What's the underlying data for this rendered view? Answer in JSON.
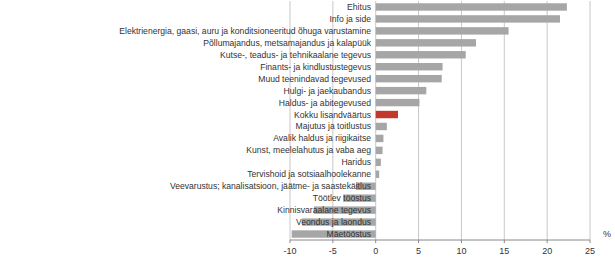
{
  "chart_data": {
    "type": "bar",
    "orientation": "horizontal",
    "xlabel": "%",
    "categories": [
      "Ehitus",
      "Info ja side",
      "Elektrienergia, gaasi, auru ja konditsioneeritud õhuga varustamine",
      "Põllumajandus, metsamajandus ja kalapüük",
      "Kutse-, teadus- ja tehnikaalane tegevus",
      "Finants- ja kindlustustegevus",
      "Muud teenindavad tegevused",
      "Hulgi- ja jaekaubandus",
      "Haldus- ja abitegevused",
      "Kokku lisandväärtus",
      "Majutus ja toitlustus",
      "Avalik haldus ja riigikaitse",
      "Kunst, meelelahutus ja vaba aeg",
      "Haridus",
      "Tervishoid ja sotsiaalhoolekanne",
      "Veevarustus; kanalisatsioon, jäätme- ja saastekäitlus",
      "Töötlev tööstus",
      "Kinnisvaraalane tegevus",
      "Veondus ja laondus",
      "Mäetööstus"
    ],
    "values": [
      22.3,
      21.5,
      15.5,
      11.7,
      10.5,
      7.8,
      7.7,
      5.9,
      5.1,
      2.6,
      1.3,
      0.9,
      0.8,
      0.6,
      0.4,
      -2.3,
      -3.8,
      -7.2,
      -8.6,
      -9.8
    ],
    "colors": [
      "#a6a6a6",
      "#a6a6a6",
      "#a6a6a6",
      "#a6a6a6",
      "#a6a6a6",
      "#a6a6a6",
      "#a6a6a6",
      "#a6a6a6",
      "#a6a6a6",
      "#c0392b",
      "#a6a6a6",
      "#a6a6a6",
      "#a6a6a6",
      "#a6a6a6",
      "#a6a6a6",
      "#a6a6a6",
      "#a6a6a6",
      "#a6a6a6",
      "#a6a6a6",
      "#a6a6a6"
    ],
    "xlim": [
      -10,
      25
    ],
    "xticks": [
      -10,
      -5,
      0,
      5,
      10,
      15,
      20,
      25
    ],
    "grid": true
  }
}
